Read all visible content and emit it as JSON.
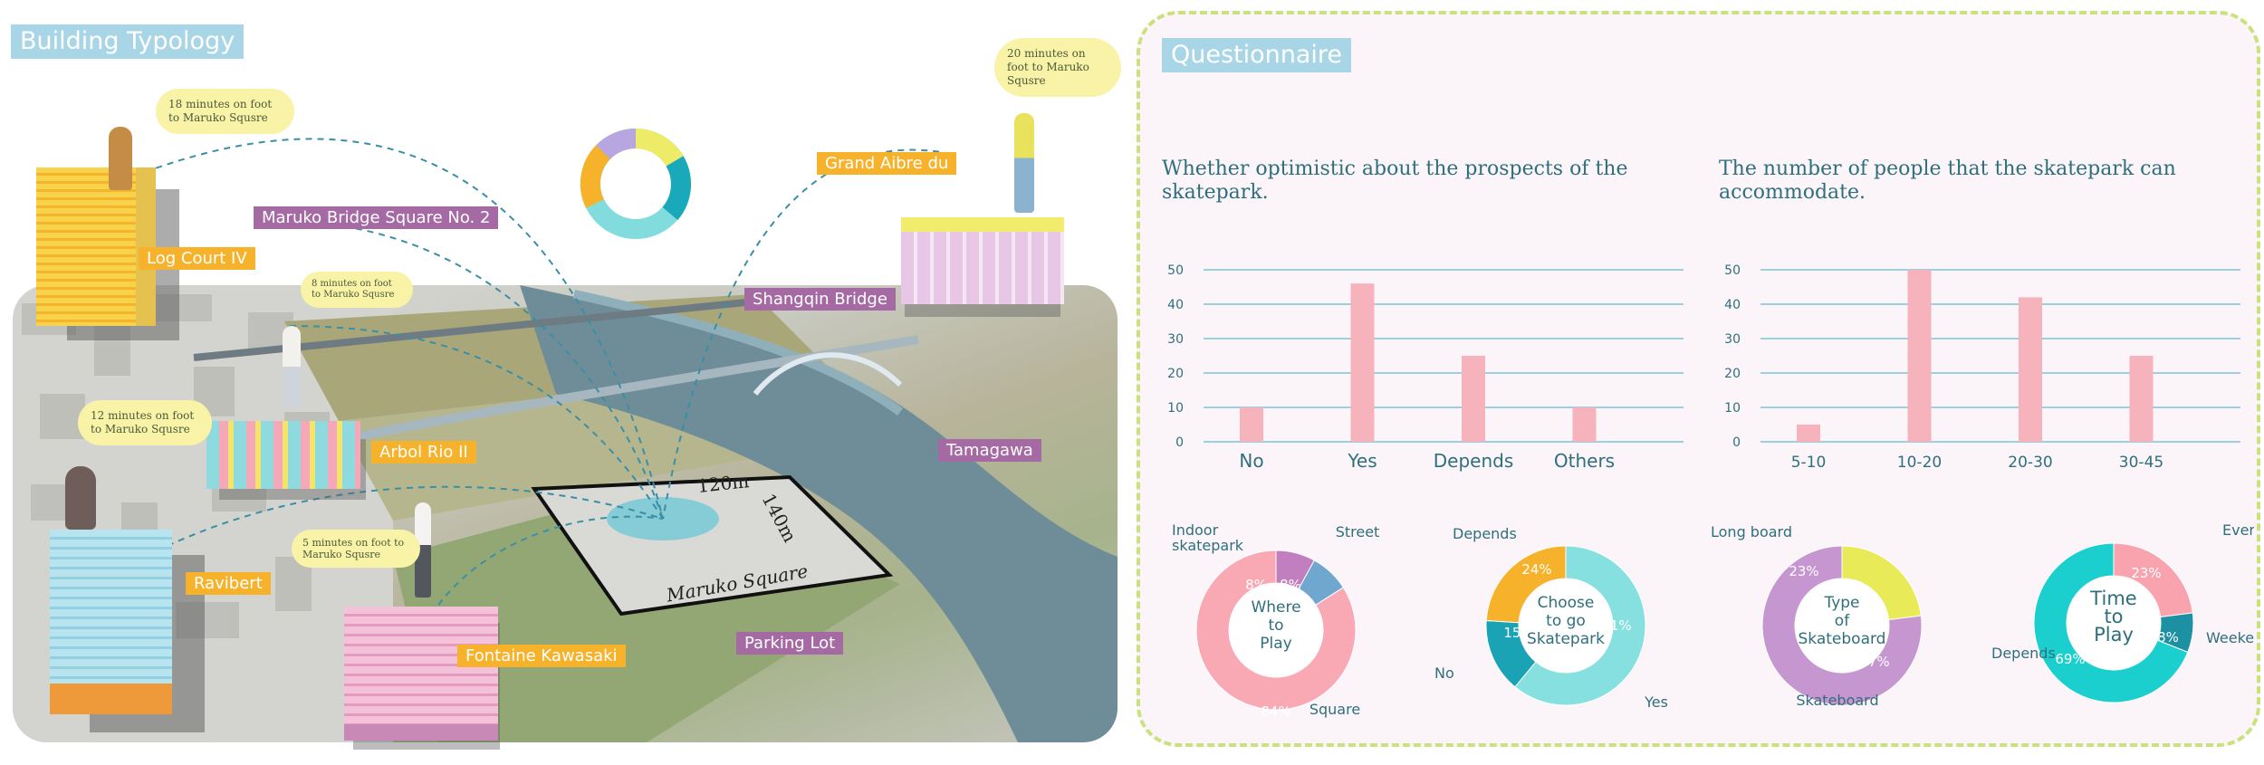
{
  "left": {
    "title": "Building Typology",
    "labels": [
      {
        "text": "Maruko Bridge Square No. 2",
        "color": "purple"
      },
      {
        "text": "Log Court IV",
        "color": "orange"
      },
      {
        "text": "Grand Aibre du",
        "color": "orange"
      },
      {
        "text": "Shangqin Bridge",
        "color": "purple"
      },
      {
        "text": "Arbol Rio II",
        "color": "orange"
      },
      {
        "text": "Tamagawa",
        "color": "purple"
      },
      {
        "text": "Ravibert",
        "color": "orange"
      },
      {
        "text": "Fontaine Kawasaki",
        "color": "orange"
      },
      {
        "text": "Parking Lot",
        "color": "purple"
      }
    ],
    "bubbles": [
      "18 minutes on foot to Maruko Squsre",
      "20 minutes on foot to Maruko Squsre",
      "8 minutes on foot to Maruko Squsre",
      "12 minutes on foot to Maruko Squsre",
      "5 minutes on foot to Maruko Squsre"
    ],
    "square": {
      "label": "Maruko Square",
      "width": "120m",
      "length": "140m"
    },
    "colors": {
      "orange": "#f7b22c",
      "purple": "#a56aa4",
      "bubble": "#f8f3a6",
      "route": "#3a8fa5"
    }
  },
  "right": {
    "title": "Questionnaire"
  },
  "chart_data": [
    {
      "type": "bar",
      "title": "Whether optimistic about the prospects of the skatepark.",
      "categories": [
        "No",
        "Yes",
        "Depends",
        "Others"
      ],
      "values": [
        10,
        46,
        25,
        10
      ],
      "ylim": [
        0,
        50
      ],
      "yticks": [
        0,
        10,
        20,
        30,
        40,
        50
      ],
      "grid": true,
      "color": "#f6b3bb"
    },
    {
      "type": "bar",
      "title": "The number of people that the skatepark can accommodate.",
      "categories": [
        "5-10",
        "10-20",
        "20-30",
        "30-45"
      ],
      "values": [
        5,
        50,
        42,
        25
      ],
      "ylim": [
        0,
        50
      ],
      "yticks": [
        0,
        10,
        20,
        30,
        40,
        50
      ],
      "grid": true,
      "color": "#f6b3bb"
    },
    {
      "type": "pie",
      "center_label": [
        "Where",
        "to",
        "Play"
      ],
      "slices": [
        {
          "label": "Square",
          "value": 84,
          "text": "84%",
          "color": "#f8a9b3"
        },
        {
          "label": "Indoor skatepark",
          "value": 8,
          "text": "8%",
          "color": "#c27fbf"
        },
        {
          "label": "Street",
          "value": 8,
          "text": "8%",
          "color": "#6fa7cf"
        }
      ]
    },
    {
      "type": "pie",
      "center_label": [
        "Choose",
        "to go",
        "Skatepark"
      ],
      "slices": [
        {
          "label": "Yes",
          "value": 61,
          "text": "61%",
          "color": "#86e0e0"
        },
        {
          "label": "No",
          "value": 15,
          "text": "15%",
          "color": "#1aa3b5"
        },
        {
          "label": "Depends",
          "value": 24,
          "text": "24%",
          "color": "#f7b22c"
        }
      ]
    },
    {
      "type": "pie",
      "center_label": [
        "Type",
        "of",
        "Skateboard"
      ],
      "slices": [
        {
          "label": "Skateboard",
          "value": 77,
          "text": "77%",
          "color": "#c596cf"
        },
        {
          "label": "Long board",
          "value": 23,
          "text": "23%",
          "color": "#e9ea57"
        }
      ]
    },
    {
      "type": "pie",
      "center_label": [
        "Time",
        "to",
        "Play"
      ],
      "slices": [
        {
          "label": "Everyday",
          "value": 23,
          "text": "23%",
          "color": "#f8a3ad"
        },
        {
          "label": "Weekend",
          "value": 8,
          "text": "8%",
          "color": "#1d91a3"
        },
        {
          "label": "Depends",
          "value": 69,
          "text": "69%",
          "color": "#1ccfcf"
        }
      ]
    }
  ]
}
